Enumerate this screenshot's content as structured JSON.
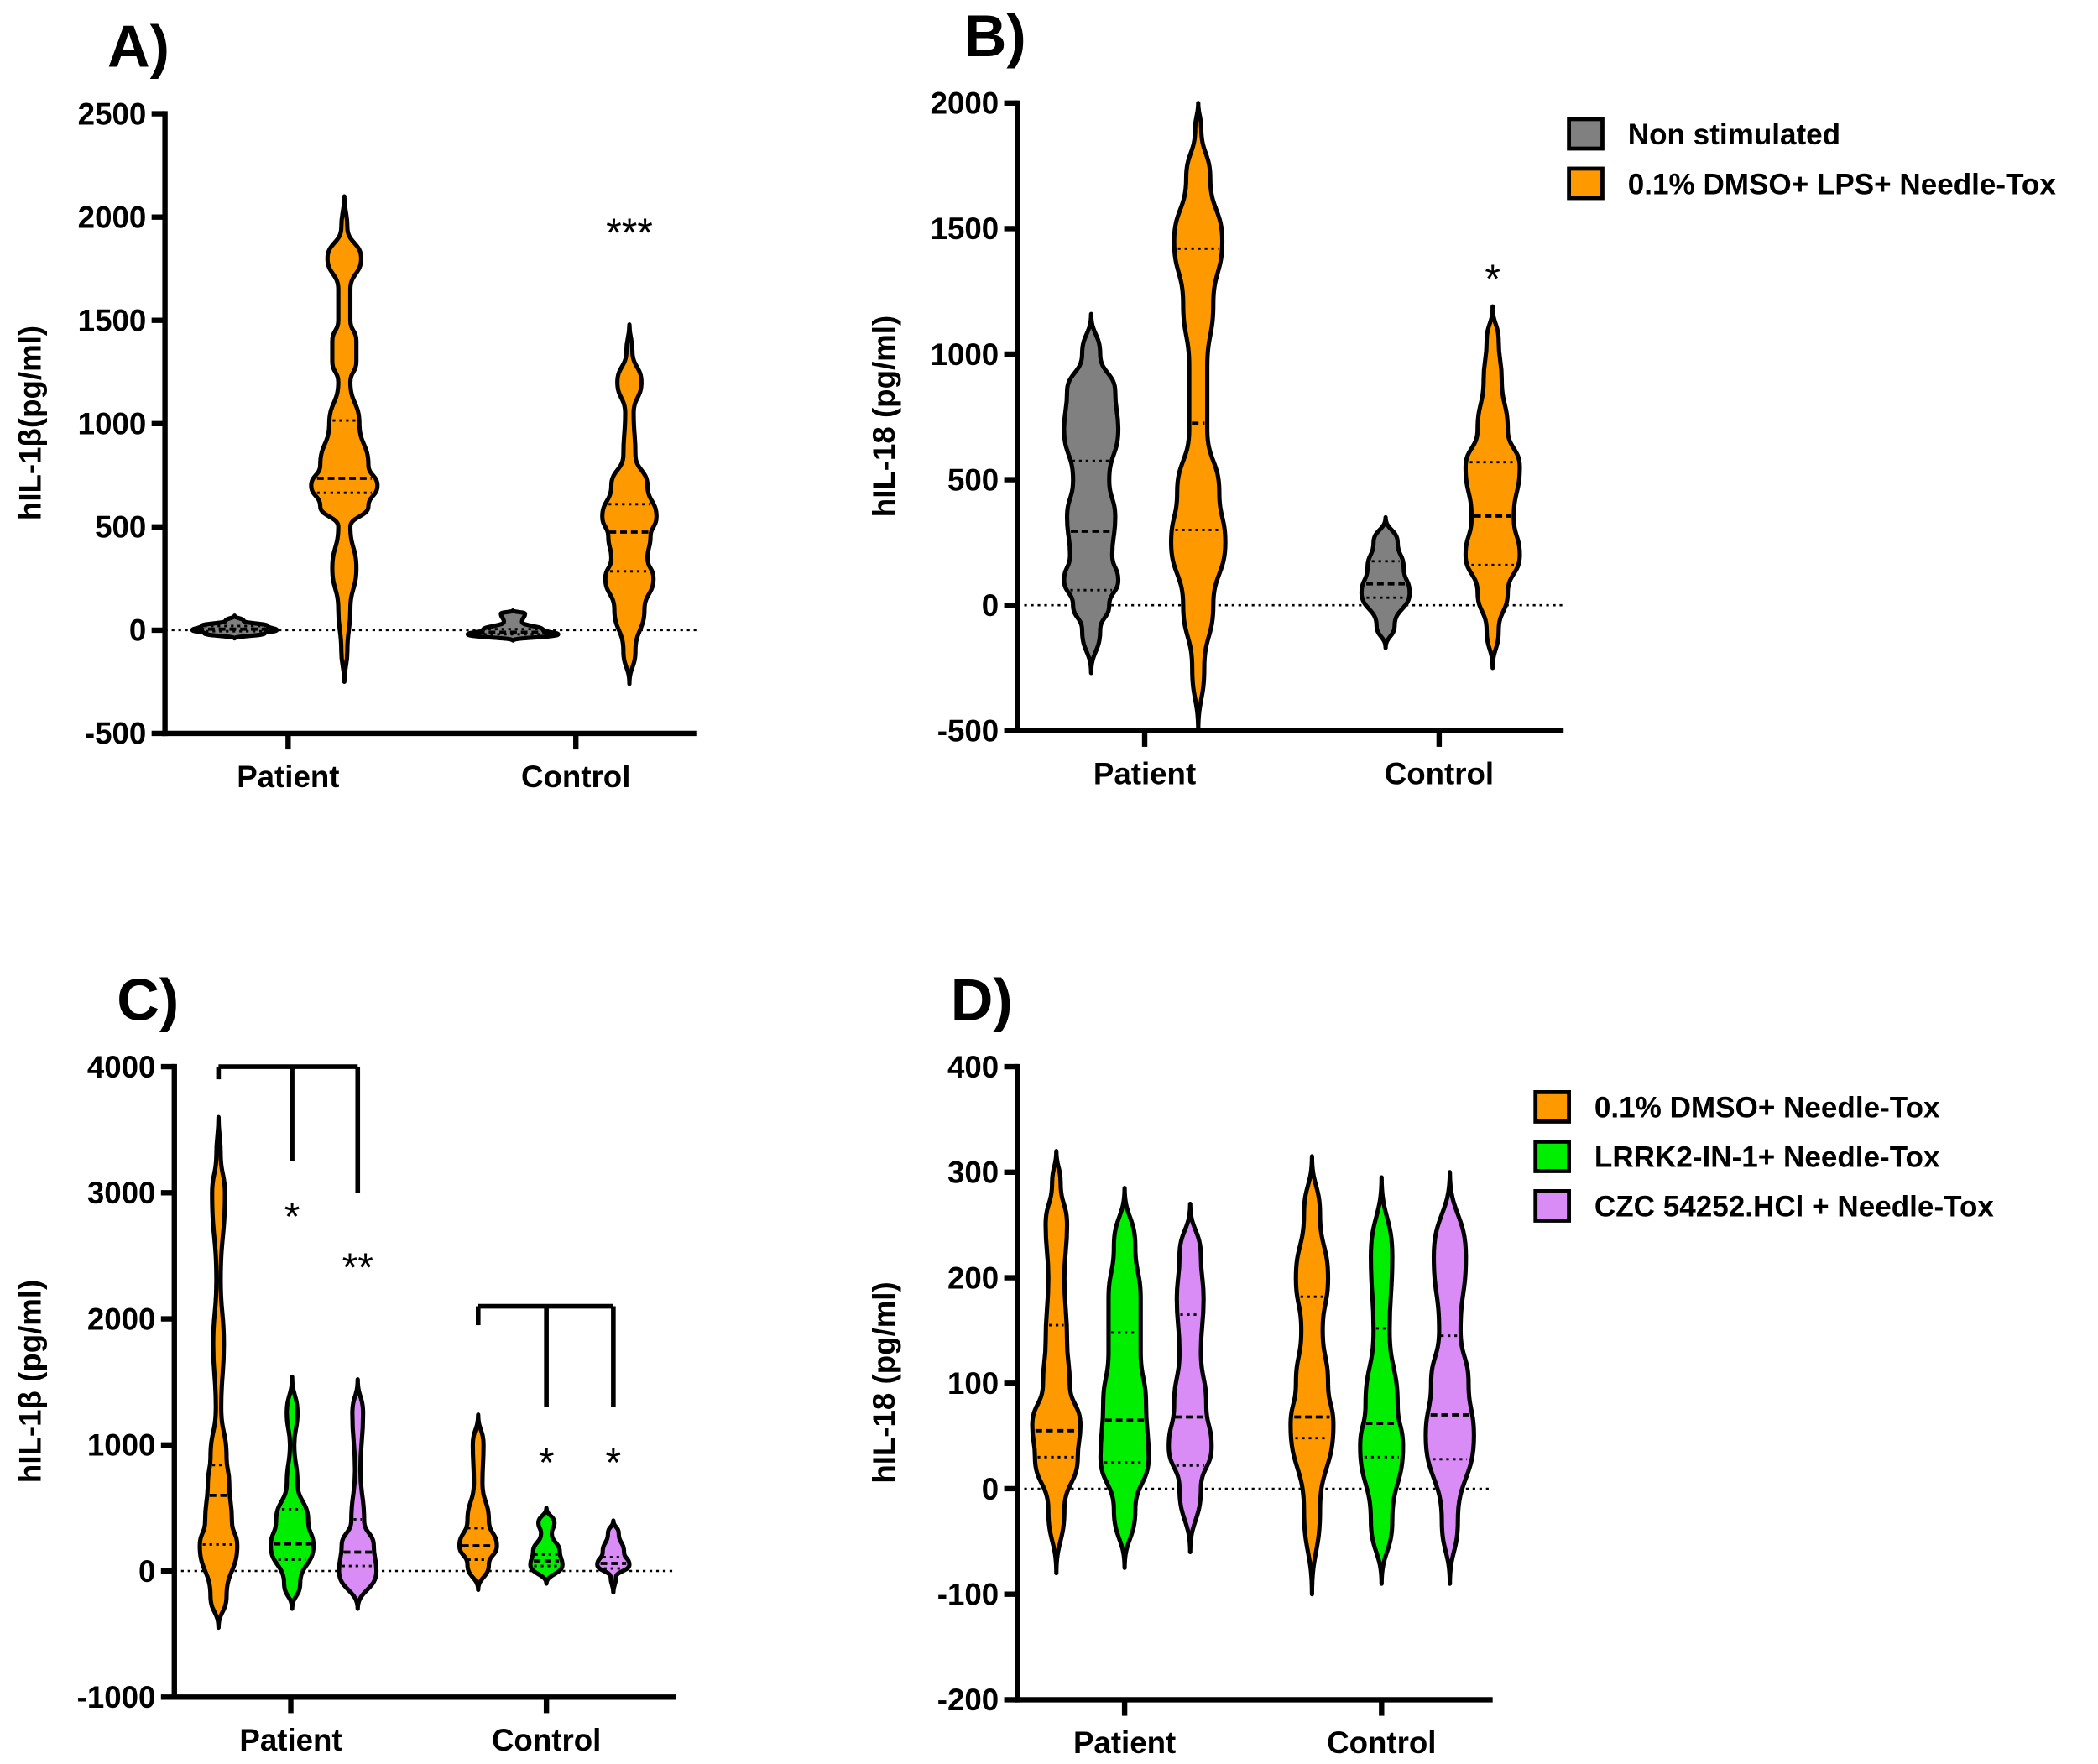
{
  "colors": {
    "nonstim": "#808080",
    "orange": "#ff9900",
    "green": "#00ee00",
    "purple": "#d98cf5"
  },
  "chart_data": [
    {
      "panel": "A)",
      "type": "violin",
      "ylabel": "hIL-1β(pg/ml)",
      "ylim": [
        -500,
        2500
      ],
      "yticks": [
        "-500",
        "0",
        "500",
        "1000",
        "1500",
        "2000",
        "2500"
      ],
      "categories": [
        "Patient",
        "Control"
      ],
      "legend": [],
      "series": [
        {
          "group": 0,
          "name": "Non stimulated",
          "color": "nonstim",
          "median": 5,
          "q1": -5,
          "q3": 20,
          "profile": [
            [
              -40,
              0
            ],
            [
              -15,
              0.5
            ],
            [
              0,
              0.7
            ],
            [
              20,
              0.55
            ],
            [
              45,
              0.15
            ],
            [
              70,
              0
            ]
          ]
        },
        {
          "group": 0,
          "name": "0.1% DMSO+ LPS+ Needle-Tox",
          "color": "orange",
          "median": 735,
          "q1": 665,
          "q3": 1015,
          "profile": [
            [
              -250,
              0
            ],
            [
              -100,
              0.05
            ],
            [
              100,
              0.1
            ],
            [
              300,
              0.2
            ],
            [
              500,
              0.1
            ],
            [
              600,
              0.4
            ],
            [
              700,
              0.55
            ],
            [
              800,
              0.4
            ],
            [
              1000,
              0.25
            ],
            [
              1200,
              0.1
            ],
            [
              1300,
              0.2
            ],
            [
              1400,
              0.2
            ],
            [
              1500,
              0.1
            ],
            [
              1650,
              0.1
            ],
            [
              1800,
              0.28
            ],
            [
              1950,
              0.05
            ],
            [
              2100,
              0
            ]
          ]
        },
        {
          "group": 1,
          "name": "Non stimulated",
          "color": "nonstim",
          "median": -10,
          "q1": -20,
          "q3": 5,
          "profile": [
            [
              -50,
              0
            ],
            [
              -20,
              0.75
            ],
            [
              0,
              0.5
            ],
            [
              40,
              0.15
            ],
            [
              80,
              0.2
            ],
            [
              95,
              0
            ]
          ]
        },
        {
          "group": 1,
          "name": "0.1% DMSO+ LPS+ Needle-Tox",
          "color": "orange",
          "median": 475,
          "q1": 285,
          "q3": 610,
          "profile": [
            [
              -260,
              0
            ],
            [
              -100,
              0.1
            ],
            [
              100,
              0.25
            ],
            [
              250,
              0.4
            ],
            [
              350,
              0.3
            ],
            [
              450,
              0.35
            ],
            [
              550,
              0.45
            ],
            [
              700,
              0.3
            ],
            [
              850,
              0.1
            ],
            [
              1050,
              0.07
            ],
            [
              1200,
              0.2
            ],
            [
              1350,
              0.05
            ],
            [
              1480,
              0
            ]
          ]
        }
      ],
      "annotations": [
        {
          "text": "***",
          "group": 1,
          "series": 1,
          "value": 1950
        }
      ],
      "brackets": []
    },
    {
      "panel": "B)",
      "type": "violin",
      "ylabel": "hIL-18 (pg/ml)",
      "ylim": [
        -500,
        2000
      ],
      "yticks": [
        "-500",
        "0",
        "500",
        "1000",
        "1500",
        "2000"
      ],
      "categories": [
        "Patient",
        "Control"
      ],
      "legend": [
        {
          "label": "Non stimulated",
          "color": "nonstim"
        },
        {
          "label": "0.1% DMSO+ LPS+ Needle-Tox",
          "color": "orange"
        }
      ],
      "series": [
        {
          "group": 0,
          "name": "Non stimulated",
          "color": "nonstim",
          "median": 295,
          "q1": 60,
          "q3": 575,
          "profile": [
            [
              -270,
              0
            ],
            [
              -100,
              0.15
            ],
            [
              0,
              0.3
            ],
            [
              100,
              0.45
            ],
            [
              200,
              0.35
            ],
            [
              350,
              0.4
            ],
            [
              500,
              0.3
            ],
            [
              700,
              0.45
            ],
            [
              850,
              0.4
            ],
            [
              1000,
              0.15
            ],
            [
              1160,
              0
            ]
          ]
        },
        {
          "group": 0,
          "name": "0.1% DMSO+ LPS+ Needle-Tox",
          "color": "orange",
          "median": 725,
          "q1": 300,
          "q3": 1420,
          "profile": [
            [
              -500,
              0
            ],
            [
              -250,
              0.1
            ],
            [
              0,
              0.25
            ],
            [
              250,
              0.45
            ],
            [
              450,
              0.35
            ],
            [
              700,
              0.15
            ],
            [
              950,
              0.15
            ],
            [
              1200,
              0.25
            ],
            [
              1450,
              0.4
            ],
            [
              1700,
              0.2
            ],
            [
              1900,
              0.05
            ],
            [
              2000,
              0
            ]
          ]
        },
        {
          "group": 1,
          "name": "Non stimulated",
          "color": "nonstim",
          "median": 85,
          "q1": 30,
          "q3": 175,
          "profile": [
            [
              -170,
              0
            ],
            [
              -80,
              0.15
            ],
            [
              50,
              0.4
            ],
            [
              150,
              0.3
            ],
            [
              250,
              0.2
            ],
            [
              350,
              0
            ]
          ]
        },
        {
          "group": 1,
          "name": "0.1% DMSO+ LPS+ Needle-Tox",
          "color": "orange",
          "median": 355,
          "q1": 160,
          "q3": 570,
          "profile": [
            [
              -250,
              0
            ],
            [
              -100,
              0.1
            ],
            [
              50,
              0.25
            ],
            [
              200,
              0.45
            ],
            [
              350,
              0.35
            ],
            [
              550,
              0.45
            ],
            [
              700,
              0.25
            ],
            [
              900,
              0.15
            ],
            [
              1050,
              0.1
            ],
            [
              1190,
              0
            ]
          ]
        }
      ],
      "annotations": [
        {
          "text": "*",
          "group": 1,
          "series": 1,
          "value": 1320
        }
      ],
      "brackets": []
    },
    {
      "panel": "C)",
      "type": "violin",
      "ylabel": "hIL-1β (pg/ml)",
      "ylim": [
        -1000,
        4000
      ],
      "yticks": [
        "-1000",
        "0",
        "1000",
        "2000",
        "3000",
        "4000"
      ],
      "categories": [
        "Patient",
        "Control"
      ],
      "legend": [],
      "series": [
        {
          "group": 0,
          "name": "0.1% DMSO+ Needle-Tox",
          "color": "orange",
          "median": 600,
          "q1": 210,
          "q3": 840,
          "profile": [
            [
              -450,
              0
            ],
            [
              -200,
              0.15
            ],
            [
              200,
              0.35
            ],
            [
              400,
              0.25
            ],
            [
              700,
              0.2
            ],
            [
              900,
              0.15
            ],
            [
              1300,
              0.05
            ],
            [
              1800,
              0.1
            ],
            [
              2300,
              0.04
            ],
            [
              3000,
              0.12
            ],
            [
              3300,
              0.04
            ],
            [
              3600,
              0
            ]
          ]
        },
        {
          "group": 0,
          "name": "LRRK2-IN-1+ Needle-Tox",
          "color": "green",
          "median": 215,
          "q1": 90,
          "q3": 490,
          "profile": [
            [
              -300,
              0
            ],
            [
              -100,
              0.15
            ],
            [
              200,
              0.4
            ],
            [
              400,
              0.3
            ],
            [
              700,
              0.1
            ],
            [
              1000,
              0.04
            ],
            [
              1250,
              0.1
            ],
            [
              1540,
              0
            ]
          ]
        },
        {
          "group": 0,
          "name": "CZC 54252.HCl + Needle-Tox",
          "color": "purple",
          "median": 150,
          "q1": 40,
          "q3": 410,
          "profile": [
            [
              -300,
              0
            ],
            [
              0,
              0.35
            ],
            [
              200,
              0.3
            ],
            [
              400,
              0.12
            ],
            [
              800,
              0.05
            ],
            [
              1250,
              0.1
            ],
            [
              1520,
              0
            ]
          ]
        },
        {
          "group": 1,
          "name": "0.1% DMSO+ Needle-Tox",
          "color": "orange",
          "median": 200,
          "q1": 90,
          "q3": 340,
          "profile": [
            [
              -150,
              0
            ],
            [
              50,
              0.2
            ],
            [
              200,
              0.35
            ],
            [
              400,
              0.2
            ],
            [
              700,
              0.08
            ],
            [
              1000,
              0.1
            ],
            [
              1240,
              0
            ]
          ]
        },
        {
          "group": 1,
          "name": "LRRK2-IN-1+ Needle-Tox",
          "color": "green",
          "median": 80,
          "q1": 40,
          "q3": 130,
          "profile": [
            [
              -100,
              0
            ],
            [
              50,
              0.3
            ],
            [
              150,
              0.25
            ],
            [
              300,
              0.1
            ],
            [
              380,
              0.15
            ],
            [
              500,
              0
            ]
          ]
        },
        {
          "group": 1,
          "name": "CZC 54252.HCl + Needle-Tox",
          "color": "purple",
          "median": 60,
          "q1": 20,
          "q3": 110,
          "profile": [
            [
              -170,
              0
            ],
            [
              -50,
              0.05
            ],
            [
              50,
              0.3
            ],
            [
              150,
              0.2
            ],
            [
              300,
              0.1
            ],
            [
              400,
              0
            ]
          ]
        }
      ],
      "annotations": [
        {
          "text": "*",
          "group": 0,
          "series": 1,
          "value": 2850
        },
        {
          "text": "**",
          "group": 0,
          "series": 2,
          "value": 2450
        },
        {
          "text": "*",
          "group": 1,
          "series": 1,
          "value": 900
        },
        {
          "text": "*",
          "group": 1,
          "series": 2,
          "value": 900
        }
      ],
      "brackets": [
        {
          "group": 0,
          "top": 4000,
          "drops": [
            [
              0,
              3900
            ],
            [
              1,
              3250
            ],
            [
              2,
              3000
            ]
          ]
        },
        {
          "group": 1,
          "top": 2100,
          "drops": [
            [
              0,
              1950
            ],
            [
              1,
              1300
            ],
            [
              2,
              1300
            ]
          ]
        }
      ]
    },
    {
      "panel": "D)",
      "type": "violin",
      "ylabel": "hIL-18 (pg/ml)",
      "ylim": [
        -200,
        400
      ],
      "yticks": [
        "-200",
        "-100",
        "0",
        "100",
        "200",
        "300",
        "400"
      ],
      "categories": [
        "Patient",
        "Control"
      ],
      "legend": [
        {
          "label": "0.1% DMSO+ Needle-Tox",
          "color": "orange"
        },
        {
          "label": "LRRK2-IN-1+ Needle-Tox",
          "color": "green"
        },
        {
          "label": "CZC 54252.HCl + Needle-Tox",
          "color": "purple"
        }
      ],
      "series": [
        {
          "group": 0,
          "name": "0.1% DMSO+ Needle-Tox",
          "color": "orange",
          "median": 55,
          "q1": 30,
          "q3": 155,
          "profile": [
            [
              -80,
              0
            ],
            [
              -20,
              0.15
            ],
            [
              30,
              0.4
            ],
            [
              60,
              0.45
            ],
            [
              100,
              0.25
            ],
            [
              140,
              0.2
            ],
            [
              200,
              0.15
            ],
            [
              250,
              0.2
            ],
            [
              290,
              0.08
            ],
            [
              320,
              0
            ]
          ]
        },
        {
          "group": 0,
          "name": "LRRK2-IN-1+ Needle-Tox",
          "color": "green",
          "median": 65,
          "q1": 25,
          "q3": 148,
          "profile": [
            [
              -75,
              0
            ],
            [
              -20,
              0.2
            ],
            [
              30,
              0.45
            ],
            [
              80,
              0.4
            ],
            [
              130,
              0.3
            ],
            [
              180,
              0.3
            ],
            [
              230,
              0.2
            ],
            [
              285,
              0
            ]
          ]
        },
        {
          "group": 0,
          "name": "CZC 54252.HCl + Needle-Tox",
          "color": "purple",
          "median": 68,
          "q1": 22,
          "q3": 165,
          "profile": [
            [
              -60,
              0
            ],
            [
              0,
              0.2
            ],
            [
              40,
              0.4
            ],
            [
              80,
              0.3
            ],
            [
              130,
              0.2
            ],
            [
              180,
              0.25
            ],
            [
              220,
              0.2
            ],
            [
              270,
              0
            ]
          ]
        },
        {
          "group": 1,
          "name": "0.1% DMSO+ Needle-Tox",
          "color": "orange",
          "median": 68,
          "q1": 48,
          "q3": 182,
          "profile": [
            [
              -100,
              0
            ],
            [
              -20,
              0.15
            ],
            [
              60,
              0.4
            ],
            [
              100,
              0.3
            ],
            [
              150,
              0.2
            ],
            [
              200,
              0.3
            ],
            [
              260,
              0.15
            ],
            [
              315,
              0
            ]
          ]
        },
        {
          "group": 1,
          "name": "LRRK2-IN-1+ Needle-Tox",
          "color": "green",
          "median": 62,
          "q1": 30,
          "q3": 152,
          "profile": [
            [
              -90,
              0
            ],
            [
              -30,
              0.2
            ],
            [
              40,
              0.4
            ],
            [
              80,
              0.3
            ],
            [
              150,
              0.15
            ],
            [
              220,
              0.2
            ],
            [
              295,
              0
            ]
          ]
        },
        {
          "group": 1,
          "name": "CZC 54252.HCl + Needle-Tox",
          "color": "purple",
          "median": 70,
          "q1": 28,
          "q3": 145,
          "profile": [
            [
              -90,
              0
            ],
            [
              -30,
              0.15
            ],
            [
              50,
              0.45
            ],
            [
              100,
              0.35
            ],
            [
              150,
              0.2
            ],
            [
              220,
              0.3
            ],
            [
              300,
              0
            ]
          ]
        }
      ],
      "annotations": [],
      "brackets": []
    }
  ]
}
